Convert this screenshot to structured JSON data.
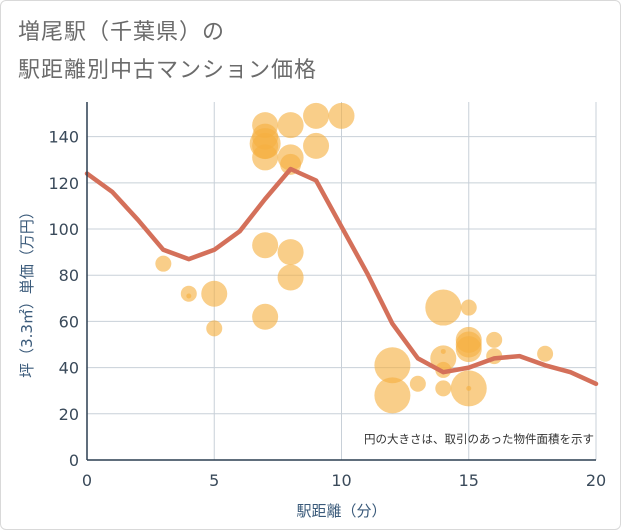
{
  "title_line1": "増尾駅（千葉県）の",
  "title_line2": "駅距離別中古マンション価格",
  "chart_data": {
    "type": "scatter",
    "xlabel": "駅距離（分）",
    "ylabel": "坪（3.3㎡）単価（万円）",
    "note": "円の大きさは、取引のあった物件面積を示す",
    "xlim": [
      0,
      20
    ],
    "ylim": [
      0,
      155
    ],
    "x_ticks": [
      0,
      5,
      10,
      15,
      20
    ],
    "y_ticks": [
      0,
      20,
      40,
      60,
      80,
      100,
      120,
      140
    ],
    "grid": true,
    "colors": {
      "bubble": "#f5b041",
      "line": "#d4705a",
      "grid": "#c8d0d8",
      "axis": "#2c3e50"
    },
    "series": [
      {
        "type": "bubble",
        "points": [
          {
            "x": 3,
            "y": 85,
            "size": 2
          },
          {
            "x": 4,
            "y": 72,
            "size": 2
          },
          {
            "x": 4,
            "y": 71,
            "size": 1
          },
          {
            "x": 5,
            "y": 72,
            "size": 4
          },
          {
            "x": 5,
            "y": 57,
            "size": 2
          },
          {
            "x": 7,
            "y": 145,
            "size": 4
          },
          {
            "x": 7,
            "y": 140,
            "size": 4
          },
          {
            "x": 7,
            "y": 137,
            "size": 5
          },
          {
            "x": 7,
            "y": 136,
            "size": 4
          },
          {
            "x": 7,
            "y": 131,
            "size": 4
          },
          {
            "x": 7,
            "y": 93,
            "size": 4
          },
          {
            "x": 7,
            "y": 62,
            "size": 4
          },
          {
            "x": 8,
            "y": 145,
            "size": 4
          },
          {
            "x": 8,
            "y": 131,
            "size": 4
          },
          {
            "x": 8,
            "y": 128,
            "size": 3
          },
          {
            "x": 8,
            "y": 90,
            "size": 4
          },
          {
            "x": 8,
            "y": 79,
            "size": 4
          },
          {
            "x": 9,
            "y": 149,
            "size": 4
          },
          {
            "x": 9,
            "y": 136,
            "size": 4
          },
          {
            "x": 10,
            "y": 149,
            "size": 4
          },
          {
            "x": 12,
            "y": 41,
            "size": 6
          },
          {
            "x": 12,
            "y": 28,
            "size": 6
          },
          {
            "x": 13,
            "y": 33,
            "size": 2
          },
          {
            "x": 14,
            "y": 66,
            "size": 6
          },
          {
            "x": 14,
            "y": 47,
            "size": 1
          },
          {
            "x": 14,
            "y": 44,
            "size": 4
          },
          {
            "x": 14,
            "y": 39,
            "size": 2
          },
          {
            "x": 14,
            "y": 31,
            "size": 2
          },
          {
            "x": 15,
            "y": 66,
            "size": 2
          },
          {
            "x": 15,
            "y": 52,
            "size": 4
          },
          {
            "x": 15,
            "y": 50,
            "size": 4
          },
          {
            "x": 15,
            "y": 48,
            "size": 4
          },
          {
            "x": 15,
            "y": 31,
            "size": 6
          },
          {
            "x": 15,
            "y": 31,
            "size": 1
          },
          {
            "x": 16,
            "y": 52,
            "size": 2
          },
          {
            "x": 16,
            "y": 45,
            "size": 2
          },
          {
            "x": 18,
            "y": 46,
            "size": 2
          }
        ]
      },
      {
        "type": "line",
        "x": [
          0,
          1,
          2,
          3,
          4,
          5,
          6,
          7,
          8,
          9,
          10,
          11,
          12,
          13,
          14,
          15,
          16,
          17,
          18,
          19,
          20
        ],
        "y": [
          124,
          116,
          104,
          91,
          87,
          91,
          99,
          113,
          126,
          121,
          101,
          81,
          59,
          44,
          38,
          40,
          44,
          45,
          41,
          38,
          33
        ]
      }
    ]
  }
}
